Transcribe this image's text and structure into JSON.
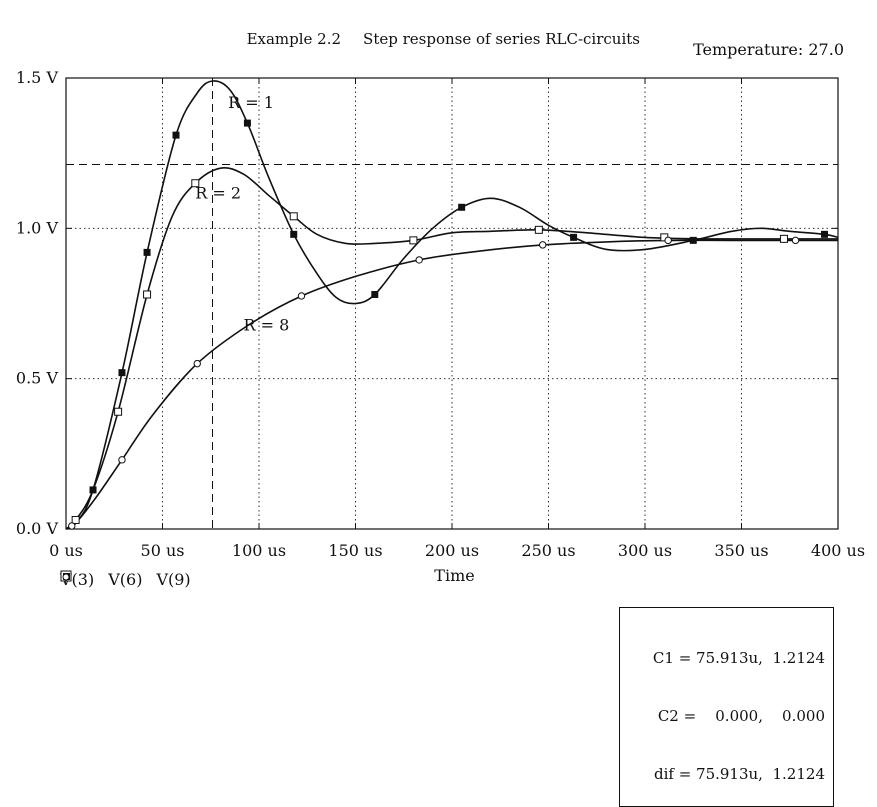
{
  "header": {
    "title_left": "Example 2.2",
    "title_right": "Step response of series RLC-circuits",
    "temperature": "Temperature: 27.0"
  },
  "chart_data": {
    "type": "line",
    "title": "Example 2.2    Step response of series RLC-circuits",
    "xlabel": "Time",
    "ylabel": "",
    "xlim": [
      0,
      400
    ],
    "ylim": [
      0,
      1.5
    ],
    "grid": true,
    "legend_position": "bottom-left",
    "x_tick_labels": [
      "0 us",
      "50 us",
      "100 us",
      "150 us",
      "200 us",
      "250 us",
      "300 us",
      "350 us",
      "400 us"
    ],
    "y_tick_labels": [
      "0.0 V",
      "0.5 V",
      "1.0 V",
      "1.5 V"
    ],
    "x_ticks": [
      0,
      50,
      100,
      150,
      200,
      250,
      300,
      350,
      400
    ],
    "y_ticks": [
      0,
      0.5,
      1.0,
      1.5
    ],
    "series": [
      {
        "name": "V(3)",
        "marker": "open-square",
        "annotation": "R = 2",
        "x": [
          0,
          5,
          14,
          27,
          42,
          55,
          67,
          80,
          92,
          105,
          118,
          130,
          145,
          160,
          180,
          200,
          220,
          245,
          270,
          300,
          330,
          360,
          380,
          400
        ],
        "y": [
          0,
          0.03,
          0.13,
          0.39,
          0.78,
          1.04,
          1.15,
          1.2,
          1.18,
          1.11,
          1.04,
          0.98,
          0.95,
          0.95,
          0.96,
          0.985,
          0.99,
          0.995,
          0.985,
          0.97,
          0.965,
          0.965,
          0.965,
          0.965
        ]
      },
      {
        "name": "V(6)",
        "marker": "filled-square",
        "annotation": "R = 1",
        "x": [
          0,
          5,
          14,
          29,
          42,
          57,
          68,
          76,
          85,
          94,
          105,
          118,
          130,
          140,
          150,
          160,
          175,
          190,
          205,
          220,
          235,
          250,
          263,
          280,
          300,
          325,
          345,
          360,
          375,
          393,
          400
        ],
        "y": [
          0,
          0.02,
          0.13,
          0.52,
          0.92,
          1.31,
          1.45,
          1.49,
          1.46,
          1.35,
          1.17,
          0.98,
          0.85,
          0.77,
          0.75,
          0.78,
          0.9,
          1.0,
          1.07,
          1.1,
          1.07,
          1.01,
          0.97,
          0.93,
          0.93,
          0.96,
          0.99,
          1.0,
          0.99,
          0.98,
          0.97
        ]
      },
      {
        "name": "V(9)",
        "marker": "open-circle",
        "annotation": "R = 8",
        "x": [
          0,
          5,
          15,
          29,
          45,
          68,
          95,
          122,
          150,
          183,
          215,
          247,
          280,
          312,
          345,
          378,
          400
        ],
        "y": [
          0,
          0.02,
          0.1,
          0.23,
          0.38,
          0.55,
          0.68,
          0.775,
          0.84,
          0.895,
          0.925,
          0.945,
          0.955,
          0.96,
          0.96,
          0.96,
          0.96
        ]
      }
    ],
    "annotations": [
      "R = 1",
      "R = 2",
      "R = 8"
    ],
    "cursor": {
      "x": 75.913,
      "y": 1.2124
    }
  },
  "cursor_readout": {
    "c1_label": "C1 = 75.913u,",
    "c1_value": "1.2124",
    "c2_label": "C2 =    0.000,",
    "c2_value": "0.000",
    "dif_label": "dif = 75.913u,",
    "dif_value": "1.2124"
  }
}
